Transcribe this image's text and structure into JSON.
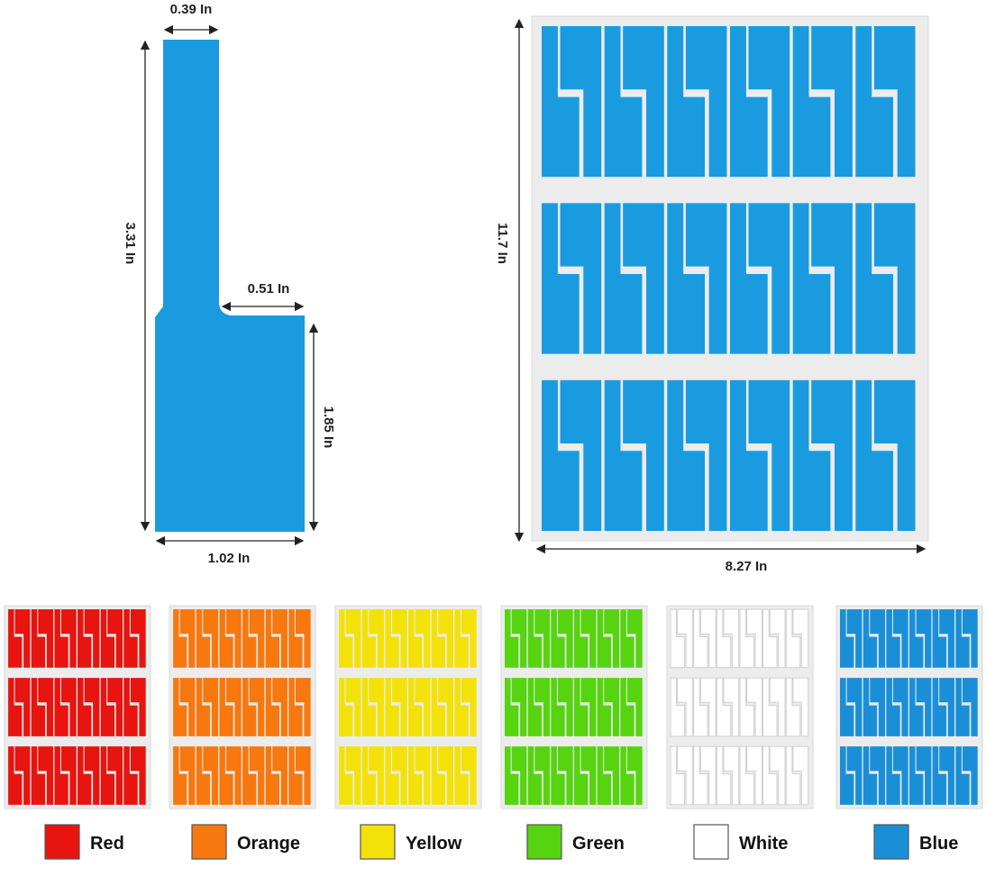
{
  "single_label": {
    "color": "#1a9be0",
    "dimensions": {
      "top_width": "0.39 In",
      "total_height": "3.31 In",
      "notch_width": "0.51 In",
      "body_height": "1.85 In",
      "bottom_width": "1.02 In"
    }
  },
  "sheet": {
    "color": "#1a9be0",
    "rows": 3,
    "columns": 6,
    "dimensions": {
      "height": "11.7 In",
      "width": "8.27 In"
    }
  },
  "color_options": [
    {
      "name": "Red",
      "hex": "#e8140f"
    },
    {
      "name": "Orange",
      "hex": "#f7780f"
    },
    {
      "name": "Yellow",
      "hex": "#f2e20a"
    },
    {
      "name": "Green",
      "hex": "#55d40f"
    },
    {
      "name": "White",
      "hex": "#ffffff"
    },
    {
      "name": "Blue",
      "hex": "#1a8fd8"
    }
  ]
}
